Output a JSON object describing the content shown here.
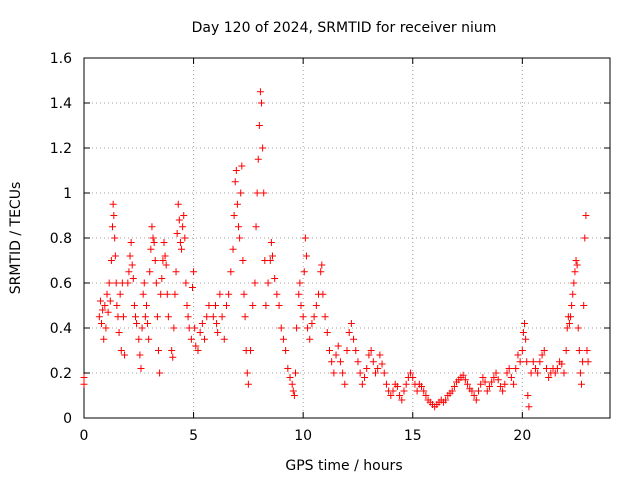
{
  "chart_data": {
    "type": "scatter",
    "title": "Day 120 of 2024, SRMTID for receiver nium",
    "xlabel": "GPS time / hours",
    "ylabel": "SRMTID / TECUs",
    "xlim": [
      0,
      24
    ],
    "ylim": [
      0,
      1.6
    ],
    "xticks": [
      0,
      5,
      10,
      15,
      20
    ],
    "xtick_labels": [
      "0",
      "5",
      "10",
      "15",
      "20"
    ],
    "yticks": [
      0,
      0.2,
      0.4,
      0.6,
      0.8,
      1.0,
      1.2,
      1.4,
      1.6
    ],
    "ytick_labels": [
      "0",
      "0.2",
      "0.4",
      "0.6",
      "0.8",
      "1",
      "1.2",
      "1.4",
      "1.6"
    ],
    "grid": true,
    "marker": "+",
    "marker_color": "#ff0000",
    "series": [
      {
        "name": "SRMTID",
        "points": [
          [
            0.0,
            0.18
          ],
          [
            0.0,
            0.15
          ],
          [
            0.7,
            0.45
          ],
          [
            0.75,
            0.52
          ],
          [
            0.8,
            0.42
          ],
          [
            0.85,
            0.48
          ],
          [
            0.9,
            0.35
          ],
          [
            0.95,
            0.5
          ],
          [
            1.0,
            0.4
          ],
          [
            1.05,
            0.55
          ],
          [
            1.1,
            0.47
          ],
          [
            1.15,
            0.6
          ],
          [
            1.2,
            0.52
          ],
          [
            1.25,
            0.7
          ],
          [
            1.3,
            0.85
          ],
          [
            1.33,
            0.95
          ],
          [
            1.36,
            0.9
          ],
          [
            1.4,
            0.8
          ],
          [
            1.43,
            0.72
          ],
          [
            1.47,
            0.6
          ],
          [
            1.5,
            0.5
          ],
          [
            1.55,
            0.45
          ],
          [
            1.6,
            0.38
          ],
          [
            1.65,
            0.55
          ],
          [
            1.7,
            0.3
          ],
          [
            1.75,
            0.6
          ],
          [
            1.8,
            0.45
          ],
          [
            1.85,
            0.28
          ],
          [
            2.0,
            0.6
          ],
          [
            2.05,
            0.65
          ],
          [
            2.1,
            0.72
          ],
          [
            2.15,
            0.78
          ],
          [
            2.2,
            0.68
          ],
          [
            2.25,
            0.62
          ],
          [
            2.3,
            0.5
          ],
          [
            2.35,
            0.45
          ],
          [
            2.4,
            0.42
          ],
          [
            2.5,
            0.35
          ],
          [
            2.55,
            0.28
          ],
          [
            2.6,
            0.22
          ],
          [
            2.65,
            0.4
          ],
          [
            2.7,
            0.55
          ],
          [
            2.75,
            0.6
          ],
          [
            2.8,
            0.45
          ],
          [
            2.85,
            0.5
          ],
          [
            2.9,
            0.42
          ],
          [
            2.95,
            0.35
          ],
          [
            3.0,
            0.65
          ],
          [
            3.05,
            0.75
          ],
          [
            3.1,
            0.85
          ],
          [
            3.15,
            0.8
          ],
          [
            3.2,
            0.78
          ],
          [
            3.25,
            0.7
          ],
          [
            3.3,
            0.6
          ],
          [
            3.35,
            0.45
          ],
          [
            3.4,
            0.3
          ],
          [
            3.45,
            0.2
          ],
          [
            3.5,
            0.55
          ],
          [
            3.55,
            0.62
          ],
          [
            3.6,
            0.7
          ],
          [
            3.65,
            0.78
          ],
          [
            3.7,
            0.72
          ],
          [
            3.75,
            0.68
          ],
          [
            3.8,
            0.55
          ],
          [
            3.85,
            0.45
          ],
          [
            4.0,
            0.3
          ],
          [
            4.05,
            0.27
          ],
          [
            4.1,
            0.4
          ],
          [
            4.15,
            0.55
          ],
          [
            4.2,
            0.65
          ],
          [
            4.25,
            0.82
          ],
          [
            4.3,
            0.95
          ],
          [
            4.35,
            0.88
          ],
          [
            4.4,
            0.78
          ],
          [
            4.45,
            0.75
          ],
          [
            4.5,
            0.85
          ],
          [
            4.55,
            0.9
          ],
          [
            4.6,
            0.8
          ],
          [
            4.65,
            0.6
          ],
          [
            4.7,
            0.5
          ],
          [
            4.75,
            0.45
          ],
          [
            4.8,
            0.4
          ],
          [
            4.9,
            0.35
          ],
          [
            4.95,
            0.58
          ],
          [
            5.0,
            0.65
          ],
          [
            5.05,
            0.4
          ],
          [
            5.1,
            0.32
          ],
          [
            5.2,
            0.3
          ],
          [
            5.3,
            0.38
          ],
          [
            5.4,
            0.42
          ],
          [
            5.5,
            0.35
          ],
          [
            5.6,
            0.45
          ],
          [
            5.7,
            0.5
          ],
          [
            5.9,
            0.45
          ],
          [
            6.0,
            0.5
          ],
          [
            6.05,
            0.42
          ],
          [
            6.1,
            0.38
          ],
          [
            6.2,
            0.55
          ],
          [
            6.3,
            0.45
          ],
          [
            6.4,
            0.35
          ],
          [
            6.5,
            0.5
          ],
          [
            6.6,
            0.55
          ],
          [
            6.7,
            0.65
          ],
          [
            6.8,
            0.75
          ],
          [
            6.85,
            0.9
          ],
          [
            6.9,
            1.05
          ],
          [
            6.95,
            1.1
          ],
          [
            7.0,
            0.95
          ],
          [
            7.05,
            0.85
          ],
          [
            7.1,
            0.8
          ],
          [
            7.15,
            1.0
          ],
          [
            7.2,
            1.12
          ],
          [
            7.25,
            0.7
          ],
          [
            7.3,
            0.55
          ],
          [
            7.35,
            0.45
          ],
          [
            7.4,
            0.3
          ],
          [
            7.45,
            0.2
          ],
          [
            7.5,
            0.15
          ],
          [
            7.6,
            0.3
          ],
          [
            7.7,
            0.5
          ],
          [
            7.8,
            0.6
          ],
          [
            7.85,
            0.85
          ],
          [
            7.9,
            1.0
          ],
          [
            7.95,
            1.15
          ],
          [
            8.0,
            1.3
          ],
          [
            8.05,
            1.45
          ],
          [
            8.1,
            1.4
          ],
          [
            8.15,
            1.2
          ],
          [
            8.2,
            1.0
          ],
          [
            8.25,
            0.7
          ],
          [
            8.3,
            0.5
          ],
          [
            8.4,
            0.6
          ],
          [
            8.5,
            0.7
          ],
          [
            8.55,
            0.78
          ],
          [
            8.6,
            0.72
          ],
          [
            8.7,
            0.62
          ],
          [
            8.8,
            0.55
          ],
          [
            8.9,
            0.5
          ],
          [
            9.0,
            0.4
          ],
          [
            9.1,
            0.35
          ],
          [
            9.2,
            0.3
          ],
          [
            9.3,
            0.22
          ],
          [
            9.4,
            0.18
          ],
          [
            9.5,
            0.15
          ],
          [
            9.55,
            0.12
          ],
          [
            9.6,
            0.1
          ],
          [
            9.65,
            0.2
          ],
          [
            9.7,
            0.4
          ],
          [
            9.8,
            0.55
          ],
          [
            9.85,
            0.6
          ],
          [
            9.9,
            0.5
          ],
          [
            10.0,
            0.45
          ],
          [
            10.05,
            0.65
          ],
          [
            10.1,
            0.8
          ],
          [
            10.15,
            0.72
          ],
          [
            10.2,
            0.4
          ],
          [
            10.3,
            0.35
          ],
          [
            10.4,
            0.42
          ],
          [
            10.5,
            0.45
          ],
          [
            10.6,
            0.5
          ],
          [
            10.7,
            0.55
          ],
          [
            10.8,
            0.65
          ],
          [
            10.85,
            0.68
          ],
          [
            10.9,
            0.55
          ],
          [
            11.0,
            0.45
          ],
          [
            11.1,
            0.38
          ],
          [
            11.2,
            0.3
          ],
          [
            11.3,
            0.25
          ],
          [
            11.4,
            0.2
          ],
          [
            11.5,
            0.28
          ],
          [
            11.6,
            0.32
          ],
          [
            11.7,
            0.25
          ],
          [
            11.8,
            0.2
          ],
          [
            11.9,
            0.15
          ],
          [
            12.0,
            0.3
          ],
          [
            12.1,
            0.38
          ],
          [
            12.2,
            0.42
          ],
          [
            12.3,
            0.35
          ],
          [
            12.4,
            0.3
          ],
          [
            12.5,
            0.25
          ],
          [
            12.6,
            0.2
          ],
          [
            12.7,
            0.15
          ],
          [
            12.8,
            0.18
          ],
          [
            12.9,
            0.22
          ],
          [
            13.0,
            0.28
          ],
          [
            13.1,
            0.3
          ],
          [
            13.2,
            0.25
          ],
          [
            13.3,
            0.2
          ],
          [
            13.4,
            0.22
          ],
          [
            13.5,
            0.28
          ],
          [
            13.6,
            0.24
          ],
          [
            13.7,
            0.2
          ],
          [
            13.8,
            0.15
          ],
          [
            13.9,
            0.12
          ],
          [
            14.0,
            0.1
          ],
          [
            14.1,
            0.12
          ],
          [
            14.2,
            0.15
          ],
          [
            14.3,
            0.14
          ],
          [
            14.4,
            0.1
          ],
          [
            14.5,
            0.08
          ],
          [
            14.6,
            0.12
          ],
          [
            14.7,
            0.15
          ],
          [
            14.8,
            0.18
          ],
          [
            14.9,
            0.2
          ],
          [
            15.0,
            0.18
          ],
          [
            15.1,
            0.15
          ],
          [
            15.2,
            0.12
          ],
          [
            15.3,
            0.15
          ],
          [
            15.4,
            0.14
          ],
          [
            15.5,
            0.12
          ],
          [
            15.6,
            0.1
          ],
          [
            15.7,
            0.08
          ],
          [
            15.8,
            0.07
          ],
          [
            15.9,
            0.06
          ],
          [
            16.0,
            0.05
          ],
          [
            16.1,
            0.06
          ],
          [
            16.2,
            0.07
          ],
          [
            16.3,
            0.08
          ],
          [
            16.4,
            0.07
          ],
          [
            16.5,
            0.08
          ],
          [
            16.6,
            0.1
          ],
          [
            16.7,
            0.11
          ],
          [
            16.8,
            0.12
          ],
          [
            16.9,
            0.14
          ],
          [
            17.0,
            0.16
          ],
          [
            17.1,
            0.17
          ],
          [
            17.2,
            0.18
          ],
          [
            17.3,
            0.19
          ],
          [
            17.4,
            0.17
          ],
          [
            17.5,
            0.15
          ],
          [
            17.6,
            0.13
          ],
          [
            17.7,
            0.12
          ],
          [
            17.8,
            0.1
          ],
          [
            17.9,
            0.08
          ],
          [
            18.0,
            0.12
          ],
          [
            18.1,
            0.15
          ],
          [
            18.2,
            0.18
          ],
          [
            18.3,
            0.16
          ],
          [
            18.4,
            0.12
          ],
          [
            18.5,
            0.14
          ],
          [
            18.6,
            0.16
          ],
          [
            18.7,
            0.18
          ],
          [
            18.8,
            0.2
          ],
          [
            18.9,
            0.17
          ],
          [
            19.0,
            0.14
          ],
          [
            19.1,
            0.12
          ],
          [
            19.2,
            0.15
          ],
          [
            19.3,
            0.2
          ],
          [
            19.4,
            0.22
          ],
          [
            19.5,
            0.18
          ],
          [
            19.6,
            0.15
          ],
          [
            19.7,
            0.22
          ],
          [
            19.8,
            0.28
          ],
          [
            19.9,
            0.25
          ],
          [
            20.0,
            0.3
          ],
          [
            20.05,
            0.38
          ],
          [
            20.1,
            0.42
          ],
          [
            20.15,
            0.35
          ],
          [
            20.2,
            0.25
          ],
          [
            20.25,
            0.1
          ],
          [
            20.3,
            0.05
          ],
          [
            20.4,
            0.2
          ],
          [
            20.5,
            0.25
          ],
          [
            20.6,
            0.22
          ],
          [
            20.7,
            0.2
          ],
          [
            20.8,
            0.25
          ],
          [
            20.9,
            0.28
          ],
          [
            21.0,
            0.3
          ],
          [
            21.1,
            0.22
          ],
          [
            21.2,
            0.18
          ],
          [
            21.3,
            0.2
          ],
          [
            21.4,
            0.22
          ],
          [
            21.5,
            0.2
          ],
          [
            21.6,
            0.22
          ],
          [
            21.7,
            0.25
          ],
          [
            21.8,
            0.24
          ],
          [
            21.9,
            0.2
          ],
          [
            22.0,
            0.3
          ],
          [
            22.05,
            0.4
          ],
          [
            22.1,
            0.45
          ],
          [
            22.15,
            0.42
          ],
          [
            22.2,
            0.45
          ],
          [
            22.25,
            0.5
          ],
          [
            22.3,
            0.55
          ],
          [
            22.35,
            0.6
          ],
          [
            22.4,
            0.65
          ],
          [
            22.45,
            0.7
          ],
          [
            22.5,
            0.68
          ],
          [
            22.55,
            0.4
          ],
          [
            22.6,
            0.3
          ],
          [
            22.65,
            0.2
          ],
          [
            22.7,
            0.15
          ],
          [
            22.75,
            0.25
          ],
          [
            22.8,
            0.5
          ],
          [
            22.85,
            0.8
          ],
          [
            22.9,
            0.9
          ],
          [
            22.95,
            0.3
          ],
          [
            23.0,
            0.25
          ]
        ]
      }
    ]
  }
}
